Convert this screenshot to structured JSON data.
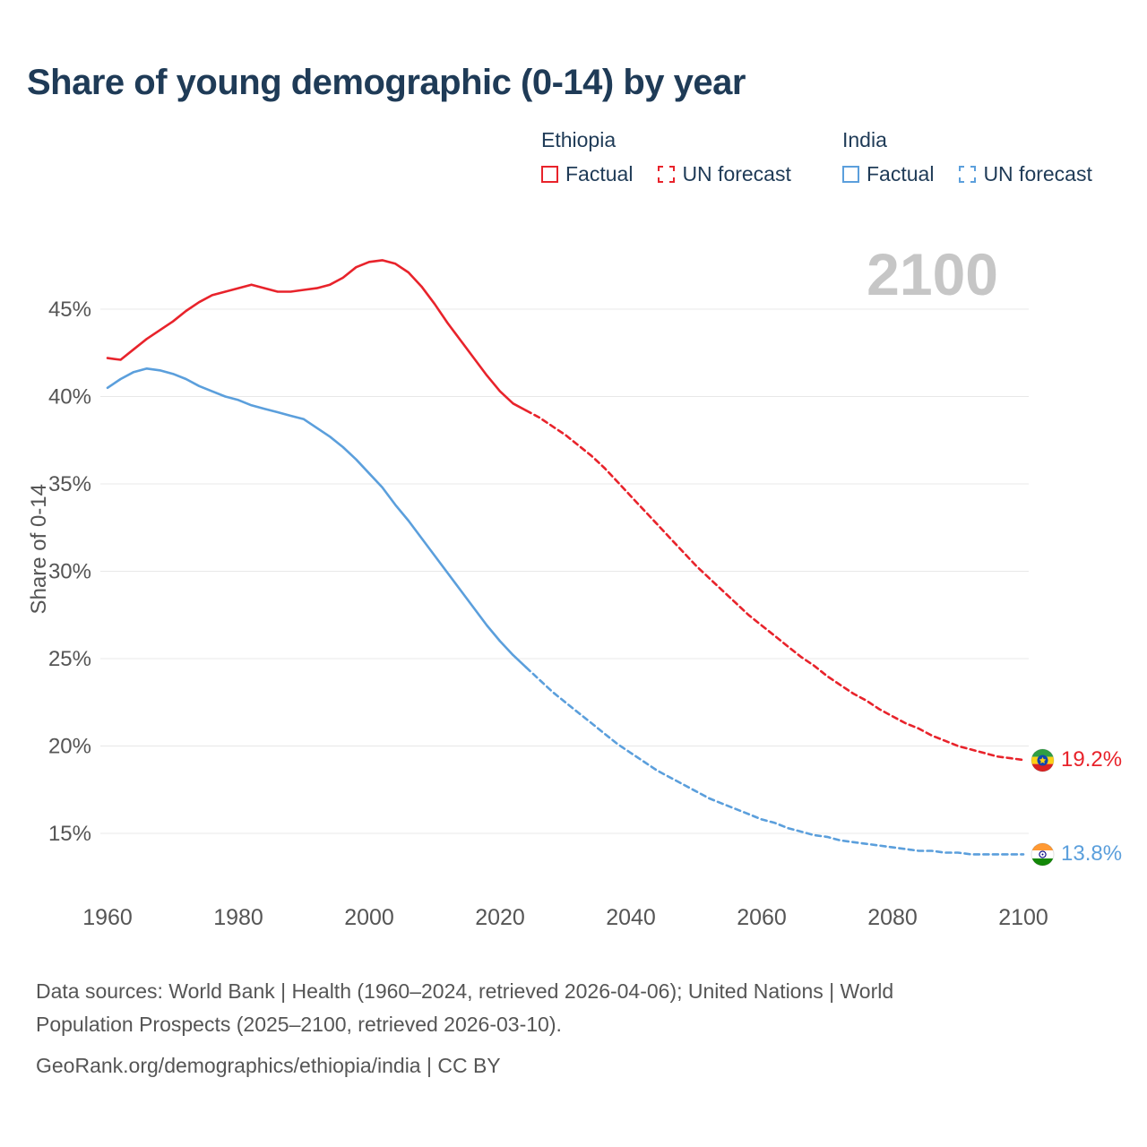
{
  "header": {
    "title": "Share of young demographic (0-14) by year"
  },
  "watermark": "2100",
  "colors": {
    "ethiopia": "#e8232b",
    "india": "#5b9fdc"
  },
  "legend": {
    "groups": [
      {
        "title": "Ethiopia",
        "country": "ethiopia",
        "items": [
          {
            "label": "Factual",
            "style": "solid"
          },
          {
            "label": "UN forecast",
            "style": "dashed"
          }
        ]
      },
      {
        "title": "India",
        "country": "india",
        "items": [
          {
            "label": "Factual",
            "style": "solid"
          },
          {
            "label": "UN forecast",
            "style": "dashed"
          }
        ]
      }
    ]
  },
  "chart_data": {
    "type": "line",
    "title": "Share of young demographic (0-14) by year",
    "xlabel": "",
    "ylabel": "Share of 0-14",
    "x_ticks": [
      1960,
      1980,
      2000,
      2020,
      2040,
      2060,
      2080,
      2100
    ],
    "y_ticks": [
      15,
      20,
      25,
      30,
      35,
      40,
      45
    ],
    "xlim": [
      1958,
      2112
    ],
    "ylim": [
      13,
      49
    ],
    "grid": "horizontal",
    "legend_position": "top-right",
    "series": [
      {
        "name": "Ethiopia Factual",
        "country": "ethiopia",
        "style": "solid",
        "x": [
          1960,
          1962,
          1964,
          1966,
          1968,
          1970,
          1972,
          1974,
          1976,
          1978,
          1980,
          1982,
          1984,
          1986,
          1988,
          1990,
          1992,
          1994,
          1996,
          1998,
          2000,
          2002,
          2004,
          2006,
          2008,
          2010,
          2012,
          2014,
          2016,
          2018,
          2020,
          2022,
          2024
        ],
        "y": [
          42.2,
          42.1,
          42.7,
          43.3,
          43.8,
          44.3,
          44.9,
          45.4,
          45.8,
          46.0,
          46.2,
          46.4,
          46.2,
          46.0,
          46.0,
          46.1,
          46.2,
          46.4,
          46.8,
          47.4,
          47.7,
          47.8,
          47.6,
          47.1,
          46.3,
          45.3,
          44.2,
          43.2,
          42.2,
          41.2,
          40.3,
          39.6,
          39.2
        ]
      },
      {
        "name": "Ethiopia UN forecast",
        "country": "ethiopia",
        "style": "dashed",
        "x": [
          2024,
          2026,
          2028,
          2030,
          2032,
          2034,
          2036,
          2038,
          2040,
          2042,
          2044,
          2046,
          2048,
          2050,
          2052,
          2054,
          2056,
          2058,
          2060,
          2062,
          2064,
          2066,
          2068,
          2070,
          2072,
          2074,
          2076,
          2078,
          2080,
          2082,
          2084,
          2086,
          2088,
          2090,
          2092,
          2094,
          2096,
          2098,
          2100
        ],
        "y": [
          39.2,
          38.8,
          38.3,
          37.8,
          37.2,
          36.6,
          35.9,
          35.1,
          34.3,
          33.5,
          32.7,
          31.9,
          31.1,
          30.3,
          29.6,
          28.9,
          28.2,
          27.5,
          26.9,
          26.3,
          25.7,
          25.1,
          24.6,
          24.0,
          23.5,
          23.0,
          22.6,
          22.1,
          21.7,
          21.3,
          21.0,
          20.6,
          20.3,
          20.0,
          19.8,
          19.6,
          19.4,
          19.3,
          19.2
        ]
      },
      {
        "name": "India Factual",
        "country": "india",
        "style": "solid",
        "x": [
          1960,
          1962,
          1964,
          1966,
          1968,
          1970,
          1972,
          1974,
          1976,
          1978,
          1980,
          1982,
          1984,
          1986,
          1988,
          1990,
          1992,
          1994,
          1996,
          1998,
          2000,
          2002,
          2004,
          2006,
          2008,
          2010,
          2012,
          2014,
          2016,
          2018,
          2020,
          2022,
          2024
        ],
        "y": [
          40.5,
          41.0,
          41.4,
          41.6,
          41.5,
          41.3,
          41.0,
          40.6,
          40.3,
          40.0,
          39.8,
          39.5,
          39.3,
          39.1,
          38.9,
          38.7,
          38.2,
          37.7,
          37.1,
          36.4,
          35.6,
          34.8,
          33.8,
          32.9,
          31.9,
          30.9,
          29.9,
          28.9,
          27.9,
          26.9,
          26.0,
          25.2,
          24.5
        ]
      },
      {
        "name": "India UN forecast",
        "country": "india",
        "style": "dashed",
        "x": [
          2024,
          2026,
          2028,
          2030,
          2032,
          2034,
          2036,
          2038,
          2040,
          2042,
          2044,
          2046,
          2048,
          2050,
          2052,
          2054,
          2056,
          2058,
          2060,
          2062,
          2064,
          2066,
          2068,
          2070,
          2072,
          2074,
          2076,
          2078,
          2080,
          2082,
          2084,
          2086,
          2088,
          2090,
          2092,
          2094,
          2096,
          2098,
          2100
        ],
        "y": [
          24.5,
          23.8,
          23.1,
          22.5,
          21.9,
          21.3,
          20.7,
          20.1,
          19.6,
          19.1,
          18.6,
          18.2,
          17.8,
          17.4,
          17.0,
          16.7,
          16.4,
          16.1,
          15.8,
          15.6,
          15.3,
          15.1,
          14.9,
          14.8,
          14.6,
          14.5,
          14.4,
          14.3,
          14.2,
          14.1,
          14.0,
          14.0,
          13.9,
          13.9,
          13.8,
          13.8,
          13.8,
          13.8,
          13.8
        ]
      }
    ],
    "end_labels": [
      {
        "country": "ethiopia",
        "label": "19.2%",
        "value": 19.2
      },
      {
        "country": "india",
        "label": "13.8%",
        "value": 13.8
      }
    ]
  },
  "footer": {
    "line1": "Data sources: World Bank | Health (1960–2024, retrieved 2026-04-06); United Nations | World",
    "line2": "Population Prospects (2025–2100, retrieved 2026-03-10).",
    "line3": "GeoRank.org/demographics/ethiopia/india | CC BY"
  }
}
